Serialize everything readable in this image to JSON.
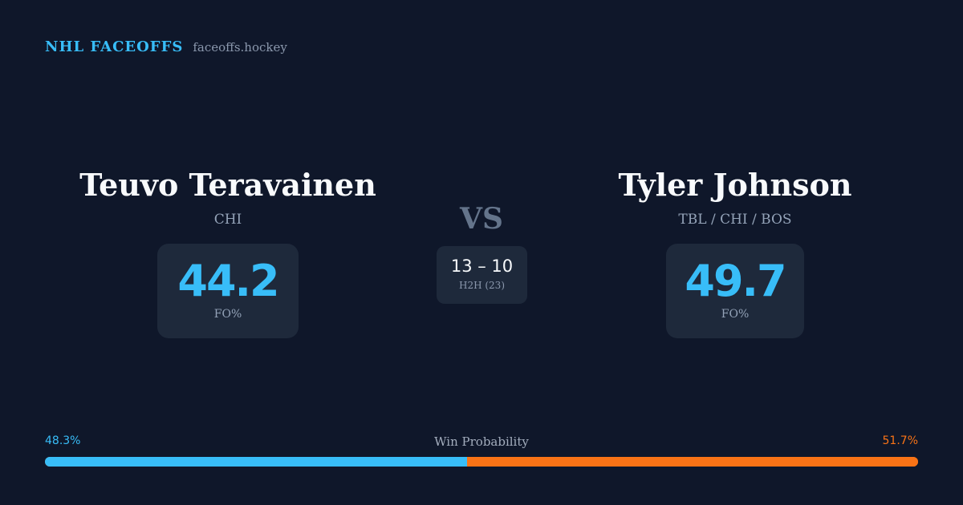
{
  "brand": {
    "name": "NHL FACEOFFS",
    "domain": "faceoffs.hockey"
  },
  "players": [
    {
      "name": "Teuvo Teravainen",
      "team": "CHI",
      "fo_pct": "44.2",
      "fo_label": "FO%"
    },
    {
      "name": "Tyler Johnson",
      "team": "TBL / CHI / BOS",
      "fo_pct": "49.7",
      "fo_label": "FO%"
    }
  ],
  "vs_label": "VS",
  "head_to_head": {
    "score": "13 – 10",
    "label": "H2H (23)"
  },
  "win_probability": {
    "title": "Win Probability",
    "left_text": "48.3%",
    "right_text": "51.7%",
    "left_pct": 48.3,
    "right_pct": 51.7,
    "left_color": "#38bdf8",
    "right_color": "#f97316"
  }
}
